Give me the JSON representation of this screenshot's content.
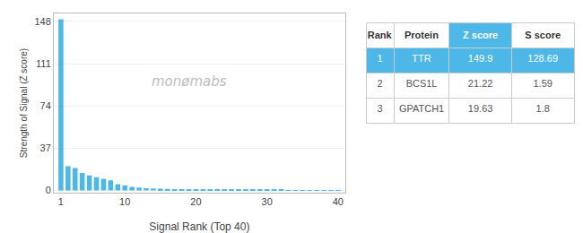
{
  "chart_data": {
    "type": "bar",
    "x": [
      1,
      2,
      3,
      4,
      5,
      6,
      7,
      8,
      9,
      10,
      11,
      12,
      13,
      14,
      15,
      16,
      17,
      18,
      19,
      20,
      21,
      22,
      23,
      24,
      25,
      26,
      27,
      28,
      29,
      30,
      31,
      32,
      33,
      34,
      35,
      36,
      37,
      38,
      39,
      40
    ],
    "values": [
      149.9,
      21.22,
      19.63,
      15.2,
      13.1,
      11.5,
      10.2,
      8.8,
      5.5,
      4.2,
      3.1,
      2.5,
      2.0,
      1.8,
      1.5,
      1.3,
      1.1,
      1.0,
      0.9,
      0.85,
      0.8,
      0.75,
      0.7,
      0.65,
      0.6,
      0.55,
      0.5,
      0.48,
      0.45,
      0.42,
      0.4,
      0.38,
      0.35,
      0.33,
      0.3,
      0.28,
      0.25,
      0.22,
      0.2,
      0.18
    ],
    "color": "#4db8e8",
    "xlabel": "Signal Rank (Top 40)",
    "ylabel": "Strength of Signal (Z score)",
    "xlim": [
      0,
      41
    ],
    "xticks": [
      1,
      10,
      20,
      30,
      40
    ],
    "ylim": [
      -2,
      155
    ],
    "yticks": [
      0,
      37,
      74,
      111,
      148
    ],
    "grid": true,
    "annotations": [
      "monømabs"
    ],
    "table": {
      "headers": [
        "Rank",
        "Protein",
        "Z score",
        "S score"
      ],
      "rows": [
        [
          "1",
          "TTR",
          "149.9",
          "128.69"
        ],
        [
          "2",
          "BCS1L",
          "21.22",
          "1.59"
        ],
        [
          "3",
          "GPATCH1",
          "19.63",
          "1.8"
        ]
      ]
    }
  }
}
